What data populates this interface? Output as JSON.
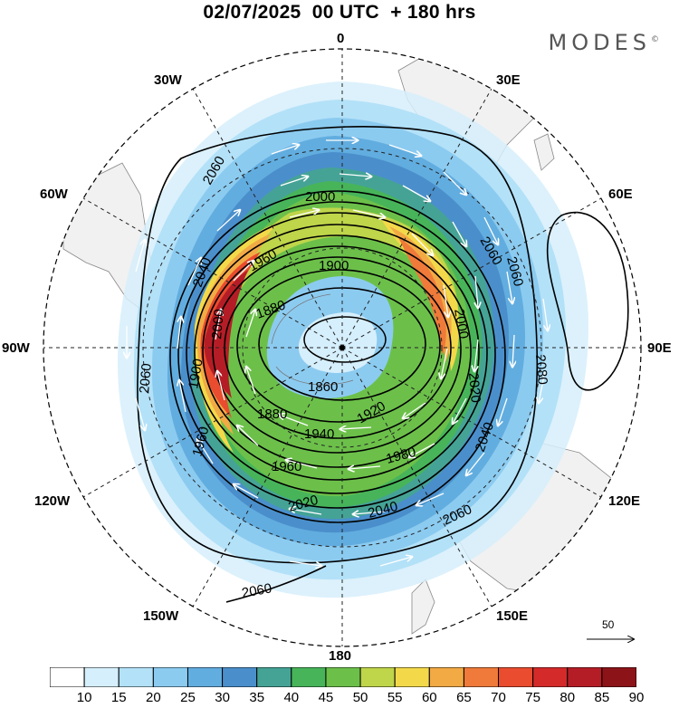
{
  "header": {
    "title": "02/07/2025  00 UTC  + 180 hrs",
    "brand": "MODES",
    "brand_mark": "©"
  },
  "map": {
    "projection": "south-polar-stereographic",
    "longitude_labels": {
      "lon_0": "0",
      "lon_30e": "30E",
      "lon_60e": "60E",
      "lon_90e": "90E",
      "lon_120e": "120E",
      "lon_150e": "150E",
      "lon_180": "180",
      "lon_150w": "150W",
      "lon_120w": "120W",
      "lon_90w": "90W",
      "lon_60w": "60W",
      "lon_30w": "30W"
    },
    "contour_labels": [
      "2060",
      "2000",
      "2060",
      "2040",
      "1960",
      "1900",
      "1880",
      "2060",
      "2000",
      "2080",
      "2000",
      "2020",
      "2060",
      "1860",
      "1880",
      "1920",
      "1940",
      "2040",
      "1960",
      "1980",
      "2020",
      "2040",
      "2060",
      "2060",
      "1960",
      "1900"
    ],
    "vector_reference": {
      "value": "50"
    },
    "colorbar": {
      "ticks": [
        "10",
        "15",
        "20",
        "25",
        "30",
        "35",
        "40",
        "45",
        "50",
        "55",
        "60",
        "65",
        "70",
        "75",
        "80",
        "85",
        "90"
      ],
      "colors": [
        "#ffffff",
        "#d6effc",
        "#b3e1f8",
        "#8ccbf0",
        "#62addf",
        "#4a8fcb",
        "#45a396",
        "#47b45a",
        "#6cc04a",
        "#bfd54a",
        "#f3d94a",
        "#f2aa45",
        "#ef7a3a",
        "#e94c2e",
        "#d42a2a",
        "#b51d26",
        "#8c1419"
      ]
    }
  }
}
